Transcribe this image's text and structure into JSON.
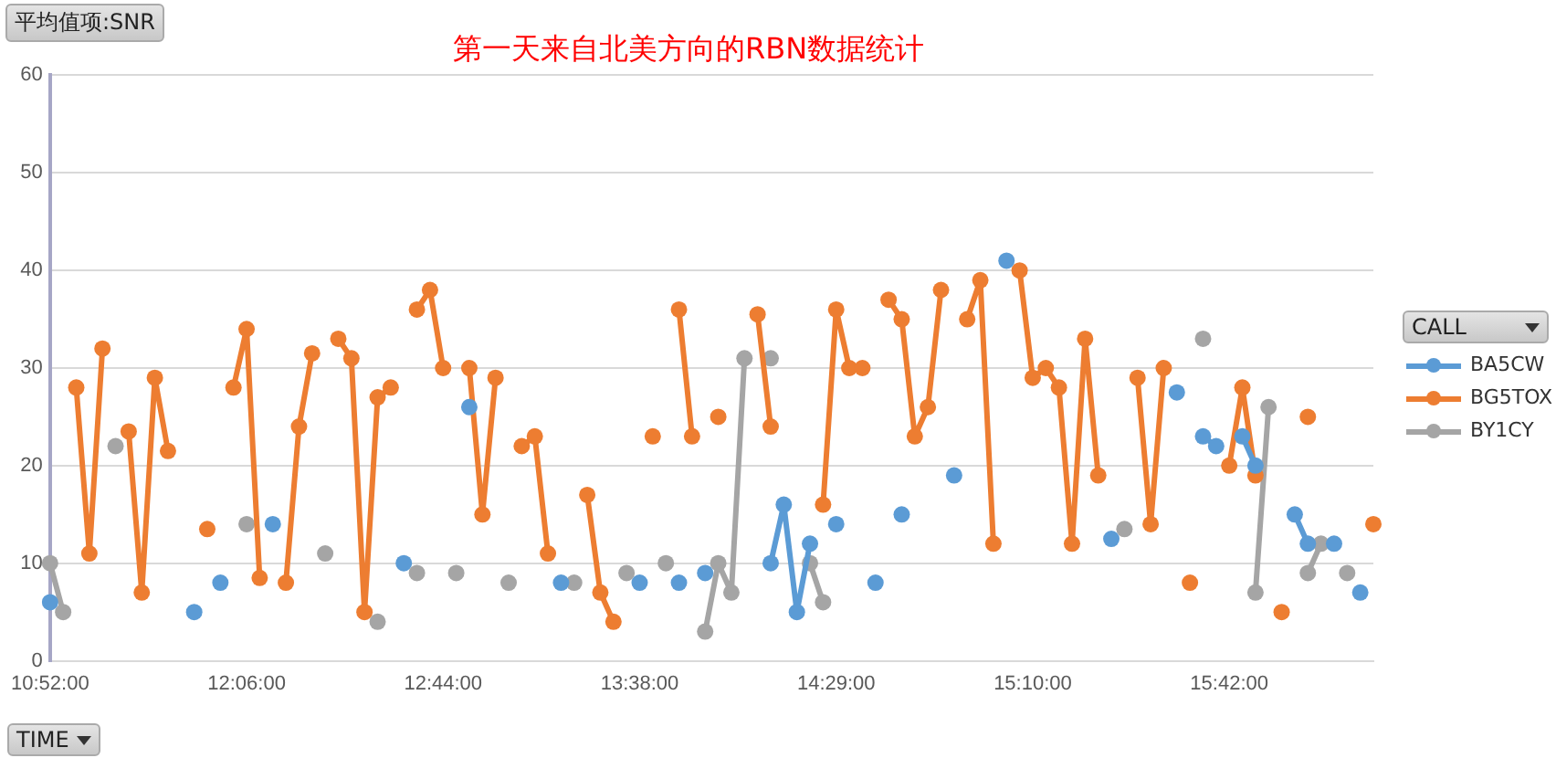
{
  "chart_data": {
    "type": "line",
    "title": "第一天来自北美方向的RBN数据统计",
    "ylabel": "平均值项:SNR",
    "xlabel": "TIME",
    "legend_title": "CALL",
    "categories": [
      "10:52:00",
      null,
      null,
      null,
      null,
      null,
      null,
      null,
      null,
      null,
      null,
      null,
      null,
      null,
      null,
      "12:06:00",
      null,
      null,
      null,
      null,
      null,
      null,
      null,
      null,
      null,
      null,
      null,
      null,
      null,
      null,
      "12:44:00",
      null,
      null,
      null,
      null,
      null,
      null,
      null,
      null,
      null,
      null,
      null,
      null,
      null,
      null,
      "13:38:00",
      null,
      null,
      null,
      null,
      null,
      null,
      null,
      null,
      null,
      null,
      null,
      null,
      null,
      null,
      "14:29:00",
      null,
      null,
      null,
      null,
      null,
      null,
      null,
      null,
      null,
      null,
      null,
      null,
      null,
      null,
      "15:10:00",
      null,
      null,
      null,
      null,
      null,
      null,
      null,
      null,
      null,
      null,
      null,
      null,
      null,
      null,
      "15:42:00",
      null,
      null,
      null,
      null,
      null,
      null,
      null,
      null,
      null,
      null,
      null
    ],
    "series": [
      {
        "name": "BA5CW",
        "color": "#5b9bd5",
        "values": [
          6,
          null,
          null,
          null,
          null,
          null,
          null,
          null,
          null,
          null,
          null,
          5,
          null,
          8,
          null,
          null,
          null,
          14,
          null,
          null,
          null,
          null,
          null,
          null,
          null,
          null,
          null,
          10,
          null,
          null,
          null,
          null,
          26,
          null,
          null,
          null,
          null,
          null,
          null,
          8,
          null,
          null,
          null,
          null,
          null,
          8,
          null,
          null,
          8,
          null,
          9,
          null,
          null,
          null,
          null,
          10,
          16,
          5,
          12,
          null,
          14,
          null,
          null,
          8,
          null,
          15,
          null,
          null,
          null,
          19,
          null,
          null,
          null,
          41,
          null,
          null,
          null,
          null,
          null,
          null,
          null,
          12.5,
          null,
          null,
          null,
          null,
          27.5,
          null,
          23,
          22,
          null,
          23,
          20,
          null,
          null,
          15,
          12,
          null,
          12,
          null,
          7,
          null
        ]
      },
      {
        "name": "BG5TOX",
        "color": "#ed7d31",
        "values": [
          null,
          null,
          28,
          11,
          32,
          null,
          23.5,
          7,
          29,
          21.5,
          null,
          null,
          13.5,
          null,
          28,
          34,
          8.5,
          null,
          8,
          24,
          31.5,
          null,
          33,
          31,
          5,
          27,
          28,
          null,
          36,
          38,
          30,
          null,
          30,
          15,
          29,
          null,
          22,
          23,
          11,
          null,
          null,
          17,
          7,
          4,
          null,
          null,
          23,
          null,
          36,
          23,
          null,
          25,
          null,
          null,
          35.5,
          24,
          null,
          null,
          null,
          16,
          36,
          30,
          30,
          null,
          37,
          35,
          23,
          26,
          38,
          null,
          35,
          39,
          12,
          null,
          40,
          29,
          30,
          28,
          12,
          33,
          19,
          null,
          null,
          29,
          14,
          30,
          null,
          8,
          null,
          null,
          20,
          28,
          19,
          null,
          5,
          null,
          25,
          null,
          null,
          null,
          null,
          14
        ]
      },
      {
        "name": "BY1CY",
        "color": "#a5a5a5",
        "values": [
          10,
          5,
          null,
          null,
          null,
          22,
          null,
          null,
          null,
          null,
          null,
          null,
          null,
          null,
          null,
          14,
          null,
          null,
          null,
          null,
          null,
          11,
          null,
          null,
          null,
          4,
          null,
          null,
          9,
          null,
          null,
          9,
          null,
          null,
          null,
          8,
          null,
          null,
          null,
          null,
          8,
          null,
          null,
          null,
          9,
          null,
          null,
          10,
          null,
          null,
          3,
          10,
          7,
          31,
          null,
          31,
          null,
          null,
          10,
          6,
          null,
          null,
          null,
          null,
          null,
          null,
          null,
          null,
          null,
          null,
          null,
          null,
          null,
          null,
          null,
          null,
          null,
          null,
          null,
          null,
          null,
          null,
          13.5,
          null,
          null,
          null,
          null,
          null,
          33,
          null,
          null,
          null,
          7,
          26,
          null,
          null,
          9,
          12,
          null,
          9,
          null,
          null
        ]
      }
    ],
    "ylim": [
      0,
      60
    ],
    "yticks": [
      0,
      10,
      20,
      30,
      40,
      50,
      60
    ],
    "grid": "y",
    "legend": "right",
    "marker": "circle",
    "line_style": "solid"
  }
}
